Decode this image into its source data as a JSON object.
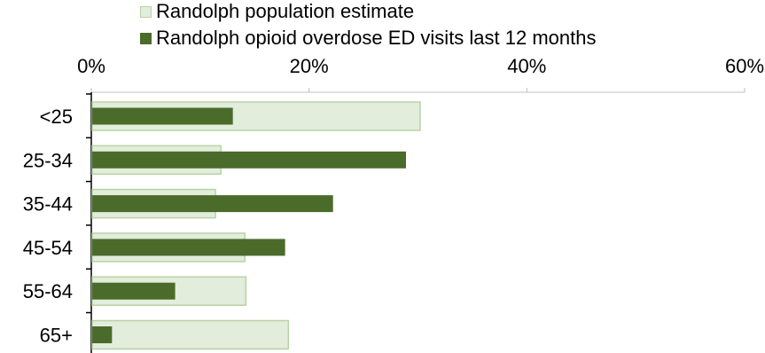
{
  "chart_data": {
    "type": "bar",
    "orientation": "horizontal",
    "title": "",
    "xlabel": "",
    "ylabel": "",
    "xlim": [
      0,
      60
    ],
    "x_ticks": [
      "0%",
      "20%",
      "40%",
      "60%"
    ],
    "x_axis_position": "top",
    "grid": false,
    "legend_position": "top",
    "categories": [
      "<25",
      "25-34",
      "35-44",
      "45-54",
      "55-64",
      "65+"
    ],
    "series": [
      {
        "name": "Randolph population estimate",
        "color": "#e2eddc",
        "border": "#b7d3a3",
        "values": [
          30.2,
          11.9,
          11.4,
          14.1,
          14.2,
          18.1
        ]
      },
      {
        "name": "Randolph opioid overdose ED visits last 12 months",
        "color": "#4b6b2b",
        "border": "#4b6b2b",
        "values": [
          13.0,
          28.9,
          22.2,
          17.8,
          7.7,
          1.9
        ]
      }
    ]
  }
}
